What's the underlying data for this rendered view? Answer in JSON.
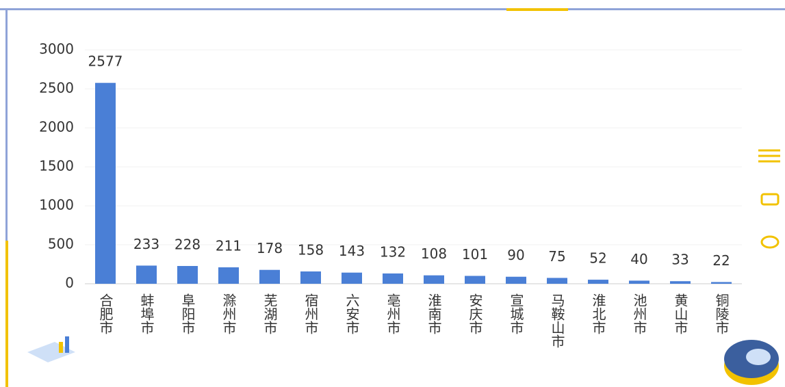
{
  "chart_data": {
    "type": "bar",
    "categories": [
      "合肥市",
      "蚌埠市",
      "阜阳市",
      "滁州市",
      "芜湖市",
      "宿州市",
      "六安市",
      "亳州市",
      "淮南市",
      "安庆市",
      "宣城市",
      "马鞍山市",
      "淮北市",
      "池州市",
      "黄山市",
      "铜陵市"
    ],
    "values": [
      2577,
      233,
      228,
      211,
      178,
      158,
      143,
      132,
      108,
      101,
      90,
      75,
      52,
      40,
      33,
      22
    ],
    "color": "#4a7fd6",
    "ylim": [
      0,
      3000
    ],
    "yticks": [
      0,
      500,
      1000,
      1500,
      2000,
      2500,
      3000
    ],
    "grid": true
  }
}
